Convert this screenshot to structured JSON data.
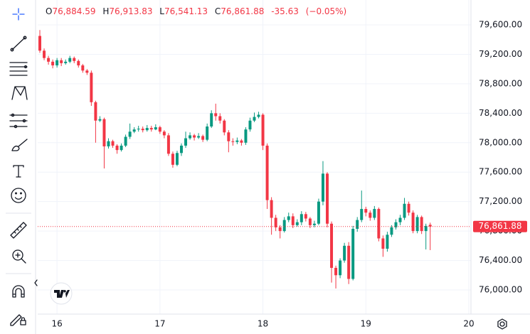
{
  "chart_data": {
    "type": "candlestick",
    "ohlc_legend": {
      "open_label": "O",
      "open": "76,884.59",
      "high_label": "H",
      "high": "76,913.83",
      "low_label": "L",
      "low": "76,541.13",
      "close_label": "C",
      "close": "76,861.88",
      "change": "-35.63",
      "change_percent": "(−0.05%)"
    },
    "last_price_label": "76,861.88",
    "up_color": "#089981",
    "down_color": "#f23645",
    "open": [
      79450,
      79250,
      79150,
      79100,
      79050,
      79120,
      79080,
      79100,
      79150,
      79110,
      79050,
      78980,
      78950,
      78550,
      78300,
      78320,
      77950,
      78020,
      77960,
      77900,
      77960,
      78080,
      78150,
      78180,
      78190,
      78170,
      78200,
      78180,
      78210,
      78150,
      78100,
      77850,
      77700,
      77860,
      77960,
      78060,
      78100,
      78070,
      78090,
      78040,
      78220,
      78400,
      78360,
      78300,
      78140,
      78020,
      78010,
      78030,
      78000,
      78180,
      78300,
      78350,
      78380,
      77960,
      77220,
      76980,
      76850,
      76800,
      76950,
      77000,
      76880,
      76920,
      77030,
      76970,
      76880,
      76900,
      77200,
      77580,
      76900,
      76300,
      76200,
      76400,
      76600,
      76150,
      76830,
      76950,
      77100,
      77050,
      76980,
      77100,
      76700,
      76560,
      76750,
      76850,
      76920,
      76980,
      77170,
      77050,
      76800,
      76990,
      76800,
      76884.59
    ],
    "high": [
      79530,
      79280,
      79180,
      79130,
      79150,
      79150,
      79130,
      79180,
      79170,
      79130,
      79070,
      79000,
      78980,
      78570,
      78360,
      78340,
      78060,
      78040,
      77980,
      77990,
      78110,
      78260,
      78210,
      78230,
      78220,
      78240,
      78230,
      78250,
      78230,
      78170,
      78130,
      77880,
      77890,
      77990,
      78150,
      78140,
      78120,
      78130,
      78110,
      78260,
      78440,
      78530,
      78400,
      78320,
      78170,
      78060,
      78070,
      78050,
      78210,
      78340,
      78410,
      78420,
      78400,
      77990,
      77260,
      77020,
      76880,
      76990,
      77050,
      77040,
      76960,
      77070,
      77060,
      76990,
      76940,
      77240,
      77750,
      77600,
      76930,
      76330,
      76430,
      76640,
      76650,
      76870,
      76990,
      77350,
      77130,
      77080,
      77140,
      77120,
      76740,
      76790,
      76880,
      76960,
      77020,
      77250,
      77200,
      77080,
      77020,
      77010,
      76900,
      76913.83
    ],
    "low": [
      79220,
      79120,
      79060,
      79010,
      79020,
      79040,
      79060,
      79080,
      79080,
      79020,
      78950,
      78920,
      78500,
      78000,
      78280,
      77650,
      77920,
      77930,
      77850,
      77880,
      77940,
      78050,
      78130,
      78150,
      78140,
      78150,
      78150,
      78170,
      78120,
      78060,
      77820,
      77660,
      77680,
      77820,
      77930,
      78040,
      78030,
      78050,
      78010,
      78020,
      78200,
      78300,
      78260,
      78100,
      77870,
      77960,
      77980,
      77960,
      77970,
      78150,
      78280,
      78330,
      77900,
      77100,
      76750,
      76800,
      76700,
      76780,
      76920,
      76840,
      76860,
      76880,
      76930,
      76840,
      76850,
      76880,
      77150,
      76850,
      76100,
      76020,
      76160,
      76370,
      76080,
      76130,
      76790,
      76920,
      77000,
      76940,
      76950,
      76660,
      76450,
      76520,
      76720,
      76820,
      76880,
      76950,
      77010,
      76770,
      76770,
      76760,
      76550,
      76541.13
    ],
    "close": [
      79250,
      79150,
      79100,
      79050,
      79120,
      79080,
      79100,
      79150,
      79110,
      79050,
      78980,
      78950,
      78550,
      78300,
      78320,
      77950,
      78020,
      77960,
      77900,
      77960,
      78080,
      78150,
      78180,
      78190,
      78170,
      78200,
      78180,
      78210,
      78150,
      78100,
      77850,
      77700,
      77860,
      77960,
      78060,
      78100,
      78070,
      78090,
      78040,
      78220,
      78400,
      78360,
      78300,
      78140,
      78020,
      78010,
      78030,
      78000,
      78180,
      78300,
      78350,
      78380,
      77960,
      77220,
      76980,
      76850,
      76800,
      76950,
      77000,
      76880,
      76920,
      77030,
      76970,
      76880,
      76900,
      77200,
      77580,
      76900,
      76300,
      76200,
      76400,
      76600,
      76150,
      76830,
      76950,
      77100,
      77050,
      76980,
      77100,
      76700,
      76560,
      76750,
      76850,
      76920,
      76980,
      77170,
      77050,
      76800,
      76990,
      76800,
      76870,
      76861.88
    ],
    "xlim": [
      -0.5,
      100.5
    ],
    "xticks": [
      {
        "value": 4,
        "label": "16"
      },
      {
        "value": 28,
        "label": "17"
      },
      {
        "value": 52,
        "label": "18"
      },
      {
        "value": 76,
        "label": "19"
      },
      {
        "value": 100,
        "label": "20"
      }
    ],
    "ylim": [
      75672,
      79938
    ],
    "yticks": [
      {
        "value": 76000,
        "label": "76,000.00"
      },
      {
        "value": 76400,
        "label": "76,400.00"
      },
      {
        "value": 76800,
        "label": "76,800.00"
      },
      {
        "value": 77200,
        "label": "77,200.00"
      },
      {
        "value": 77600,
        "label": "77,600.00"
      },
      {
        "value": 78000,
        "label": "78,000.00"
      },
      {
        "value": 78400,
        "label": "78,400.00"
      },
      {
        "value": 78800,
        "label": "78,800.00"
      },
      {
        "value": 79200,
        "label": "79,200.00"
      },
      {
        "value": 79600,
        "label": "79,600.00"
      }
    ],
    "grid": true
  }
}
